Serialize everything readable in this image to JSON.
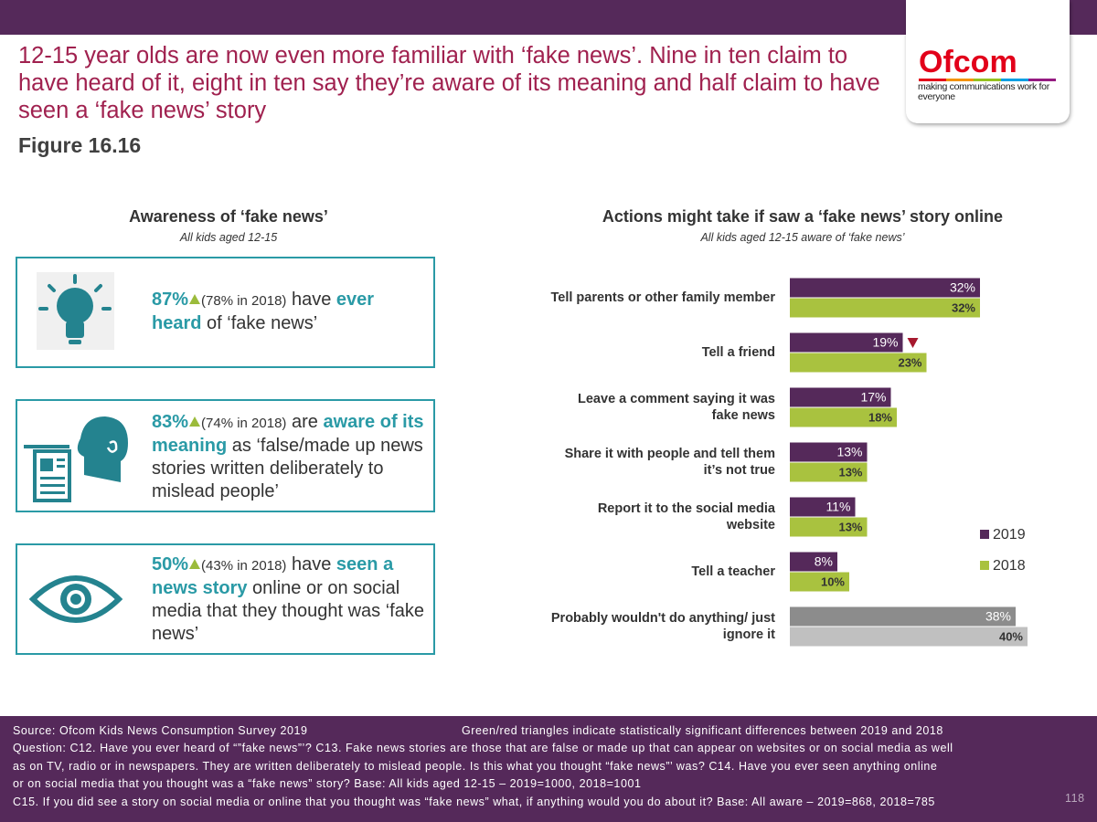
{
  "header": {
    "title": "12-15 year olds are now even more familiar with ‘fake news’. Nine in ten claim to have heard of it, eight in ten say they’re aware of its meaning and half claim to have seen a ‘fake news’ story",
    "figure": "Figure 16.16",
    "logo": "Ofcom",
    "logo_tagline": "making communications work for everyone"
  },
  "awareness": {
    "title": "Awareness of ‘fake news’",
    "subtitle": "All kids aged 12-15",
    "items": [
      {
        "stat": "87%",
        "change": "up",
        "prior": "(78% in 2018)",
        "parts": [
          {
            "text": " have "
          },
          {
            "text": "ever heard",
            "emphasis": true
          },
          {
            "text": " of ‘fake news’"
          }
        ]
      },
      {
        "stat": "83%",
        "change": "up",
        "prior": "(74% in 2018)",
        "parts": [
          {
            "text": " are "
          },
          {
            "text": "aware of its meaning",
            "emphasis": true
          },
          {
            "text": " as ‘false/made up news stories written deliberately to mislead people’"
          }
        ]
      },
      {
        "stat": "50%",
        "change": "up",
        "prior": "(43% in 2018)",
        "parts": [
          {
            "text": " have "
          },
          {
            "text": "seen a news story",
            "emphasis": true
          },
          {
            "text": " online or on social media that they thought was ‘fake news’"
          }
        ]
      }
    ]
  },
  "chart_data": {
    "type": "bar",
    "orientation": "horizontal",
    "title": "Actions might take if saw a ‘fake news’ story online",
    "subtitle": "All kids aged 12-15 aware of ‘fake news’",
    "categories": [
      "Tell parents or other family member",
      "Tell a friend",
      "Leave a comment saying it was fake news",
      "Share it with people and tell them it’s not true",
      "Report it to the social media website",
      "Tell a teacher",
      "Probably wouldn't do anything/ just ignore it"
    ],
    "series": [
      {
        "name": "2019",
        "color": "#55295a",
        "point_colors": {
          "6": "#8c8c8c"
        },
        "values": [
          32,
          19,
          17,
          13,
          11,
          8,
          38
        ],
        "value_labels": [
          "32%",
          "19%",
          "17%",
          "13%",
          "11%",
          "8%",
          "38%"
        ],
        "significance": [
          null,
          "down",
          null,
          null,
          null,
          null,
          null
        ]
      },
      {
        "name": "2018",
        "color": "#a9c23f",
        "point_colors": {
          "6": "#c0c0c0"
        },
        "values": [
          32,
          23,
          18,
          13,
          13,
          10,
          40
        ],
        "value_labels": [
          "32%",
          "23%",
          "18%",
          "13%",
          "13%",
          "10%",
          "40%"
        ]
      }
    ],
    "xlim": [
      0,
      40
    ],
    "legend": "right"
  },
  "footer": {
    "source": "Source: Ofcom Kids News Consumption Survey 2019",
    "note": "Green/red triangles indicate statistically significant differences between 2019 and 2018",
    "question_lines": [
      "Question: C12. Have you ever heard of “”fake news”’? C13. Fake news stories are those that are false or made up that can appear on websites or on social media as well",
      "as on TV, radio or in newspapers.  They are written deliberately to mislead people. Is this what you thought “fake news”’ was? C14. Have you ever seen anything online",
      "or on social media that you thought was a “fake news” story? Base: All kids aged 12-15 – 2019=1000, 2018=1001",
      "C15. If you did see a story on social media or online that you thought was “fake news” what, if anything would you do about it? Base: All aware – 2019=868, 2018=785"
    ],
    "page": "118"
  }
}
